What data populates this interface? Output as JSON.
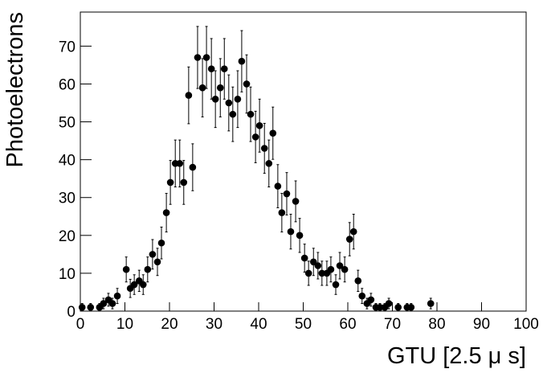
{
  "chart_data": {
    "type": "scatter",
    "x_label": "GTU [2.5 μ s]",
    "y_label": "Photoelectrons",
    "x": [
      0.4,
      2.3,
      4.3,
      5.2,
      6.3,
      7.2,
      8.3,
      10.3,
      11.2,
      12.1,
      13.2,
      14.1,
      15.1,
      16.2,
      17.3,
      18.2,
      19.3,
      20.2,
      21.3,
      22.3,
      23.2,
      24.3,
      25.2,
      26.3,
      27.4,
      28.3,
      29.4,
      30.3,
      31.4,
      32.3,
      33.3,
      34.2,
      35.3,
      36.2,
      37.3,
      38.2,
      39.3,
      40.2,
      41.3,
      42.3,
      43.2,
      44.3,
      45.2,
      46.3,
      47.2,
      48.3,
      49.2,
      50.3,
      51.2,
      52.3,
      53.3,
      54.2,
      55.3,
      56.2,
      57.3,
      58.2,
      59.3,
      60.4,
      61.3,
      62.3,
      63.2,
      64.3,
      65.2,
      66.3,
      67.2,
      68.3,
      69.2,
      71.3,
      73.3,
      74.2,
      78.6
    ],
    "values": [
      1,
      1,
      1,
      2,
      3,
      2,
      4,
      11,
      6,
      7,
      8,
      7,
      11,
      15,
      13,
      18,
      26,
      34,
      39,
      39,
      34,
      57,
      38,
      67,
      59,
      67,
      64,
      56,
      59,
      64,
      55,
      52,
      56,
      66,
      60,
      52,
      46,
      49,
      43,
      39,
      47,
      33,
      26,
      31,
      21,
      29,
      20,
      14,
      10,
      13,
      12,
      10,
      10,
      11,
      7,
      12,
      11,
      19,
      21,
      8,
      4,
      2,
      3,
      1,
      1,
      1,
      2,
      1,
      1,
      1,
      2
    ],
    "errors": [
      1,
      1,
      1,
      1.4,
      1.7,
      1.4,
      2,
      3.3,
      2.4,
      2.6,
      2.8,
      2.6,
      3.3,
      3.9,
      3.6,
      4.2,
      5.1,
      5.8,
      6.2,
      6.2,
      5.8,
      7.5,
      6.2,
      8.2,
      7.7,
      8.2,
      8,
      7.5,
      7.7,
      8,
      7.4,
      7.2,
      7.5,
      8.1,
      7.7,
      7.2,
      6.8,
      7,
      6.6,
      6.2,
      6.9,
      5.7,
      5.1,
      5.6,
      4.6,
      5.4,
      4.5,
      3.7,
      3.2,
      3.6,
      3.5,
      3.2,
      3.2,
      3.3,
      2.6,
      3.5,
      3.3,
      4.4,
      4.6,
      2.8,
      2,
      1.4,
      1.7,
      1,
      1,
      1,
      1.4,
      1,
      1,
      1,
      1.4
    ],
    "color": "#000000",
    "xlim": [
      0,
      100
    ],
    "xticks": [
      0,
      10,
      20,
      30,
      40,
      50,
      60,
      70,
      80,
      90,
      100
    ],
    "ylim": [
      0,
      79
    ],
    "yticks": [
      0,
      10,
      20,
      30,
      40,
      50,
      60,
      70
    ]
  }
}
